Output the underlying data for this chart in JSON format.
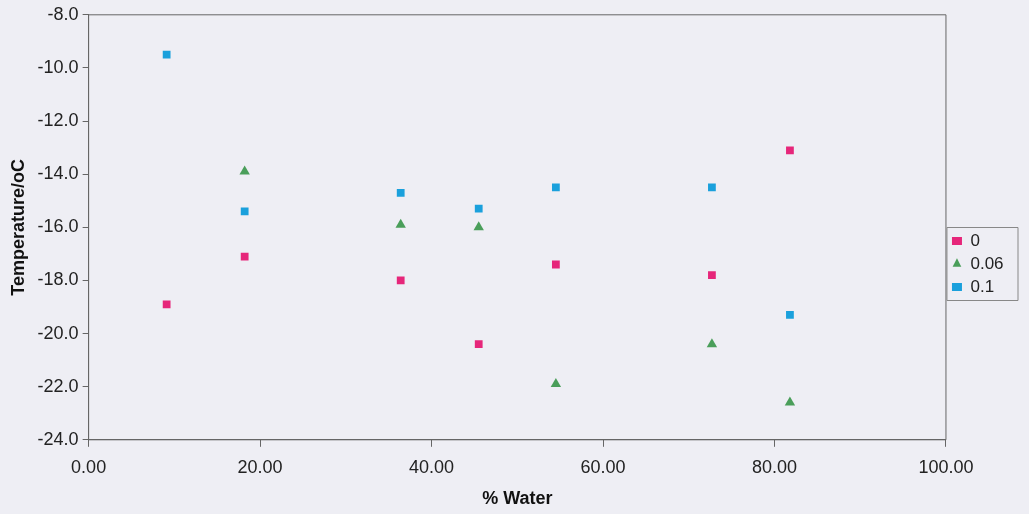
{
  "chart_data": {
    "type": "scatter",
    "xlabel": "% Water",
    "ylabel": "Temperature/oC",
    "x": [
      9.1,
      18.2,
      36.4,
      45.5,
      54.5,
      72.7,
      81.8
    ],
    "series": [
      {
        "name": "0",
        "color": "#e6267a",
        "marker": "square",
        "values": [
          -18.9,
          -17.1,
          -18.0,
          -20.4,
          -17.4,
          -17.8,
          -13.1
        ]
      },
      {
        "name": "0.06",
        "color": "#4a9e5a",
        "marker": "triangle",
        "values": [
          null,
          -13.9,
          -15.9,
          -16.0,
          -21.9,
          -20.4,
          -22.6
        ]
      },
      {
        "name": "0.1",
        "color": "#1aa0dc",
        "marker": "square",
        "values": [
          -9.5,
          -15.4,
          -14.7,
          -15.3,
          -14.5,
          -14.5,
          -19.3
        ]
      }
    ],
    "xlim": [
      0,
      100
    ],
    "xticks": [
      {
        "value": 0,
        "label": "0.00"
      },
      {
        "value": 20,
        "label": "20.00"
      },
      {
        "value": 40,
        "label": "40.00"
      },
      {
        "value": 60,
        "label": "60.00"
      },
      {
        "value": 80,
        "label": "80.00"
      },
      {
        "value": 100,
        "label": "100.00"
      }
    ],
    "ylim": [
      -24,
      -8
    ],
    "yticks": [
      {
        "value": -24,
        "label": "-24.0"
      },
      {
        "value": -22,
        "label": "-22.0"
      },
      {
        "value": -20,
        "label": "-20.0"
      },
      {
        "value": -18,
        "label": "-18.0"
      },
      {
        "value": -16,
        "label": "-16.0"
      },
      {
        "value": -14,
        "label": "-14.0"
      },
      {
        "value": -12,
        "label": "-12.0"
      },
      {
        "value": -10,
        "label": "-10.0"
      },
      {
        "value": -8,
        "label": "-8.0"
      }
    ],
    "grid": false,
    "legend": "right"
  }
}
